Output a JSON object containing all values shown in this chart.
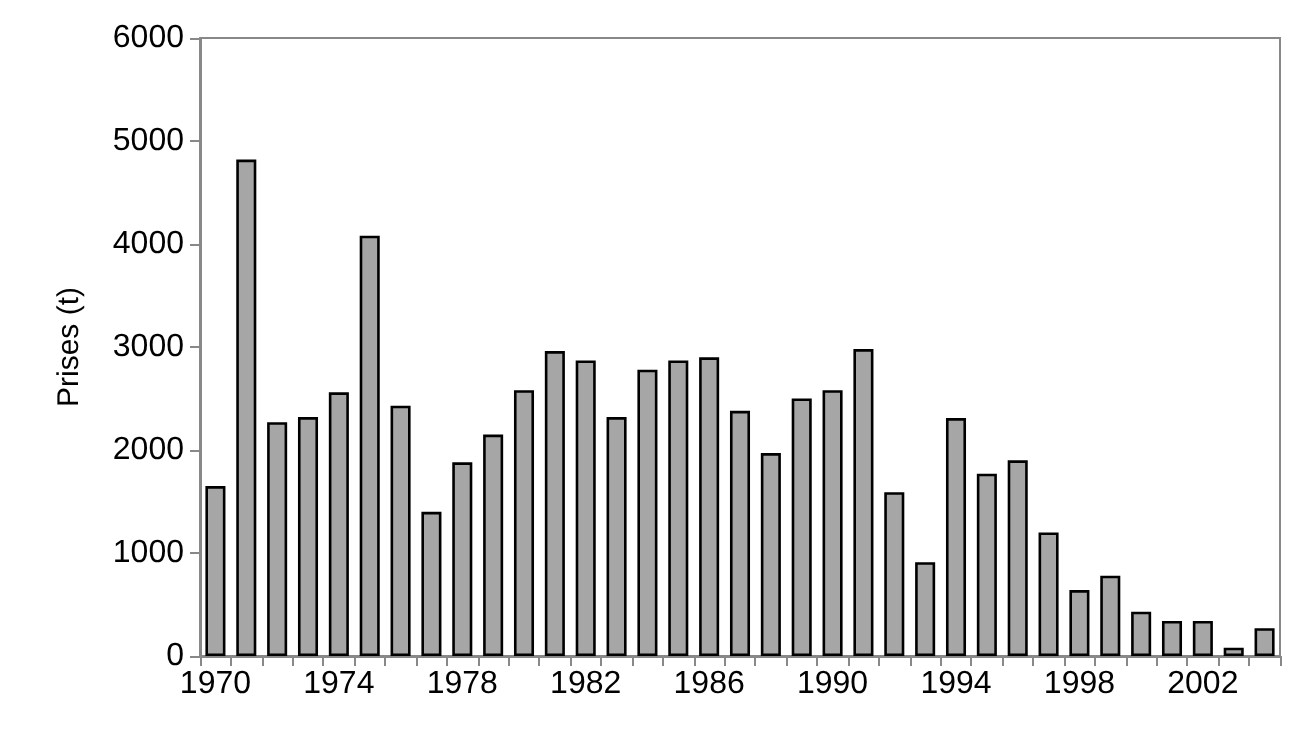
{
  "chart_data": {
    "type": "bar",
    "ylabel": "Prises (t)",
    "categories": [
      "1970",
      null,
      null,
      null,
      "1974",
      null,
      null,
      null,
      "1978",
      null,
      null,
      null,
      "1982",
      null,
      null,
      null,
      "1986",
      null,
      null,
      null,
      "1990",
      null,
      null,
      null,
      "1994",
      null,
      null,
      null,
      "1998",
      null,
      null,
      null,
      "2002",
      null,
      null
    ],
    "values": [
      1650,
      4820,
      2270,
      2320,
      2560,
      4080,
      2430,
      1400,
      1880,
      2150,
      2580,
      2960,
      2870,
      2320,
      2780,
      2870,
      2900,
      2380,
      1970,
      2500,
      2580,
      2980,
      1590,
      910,
      2310,
      1770,
      1900,
      1200,
      640,
      780,
      430,
      340,
      340,
      80,
      270
    ],
    "color": "#a6a6a6",
    "ylim": [
      0,
      6000
    ],
    "yticks": [
      0,
      1000,
      2000,
      3000,
      4000,
      5000,
      6000
    ],
    "grid": false
  }
}
